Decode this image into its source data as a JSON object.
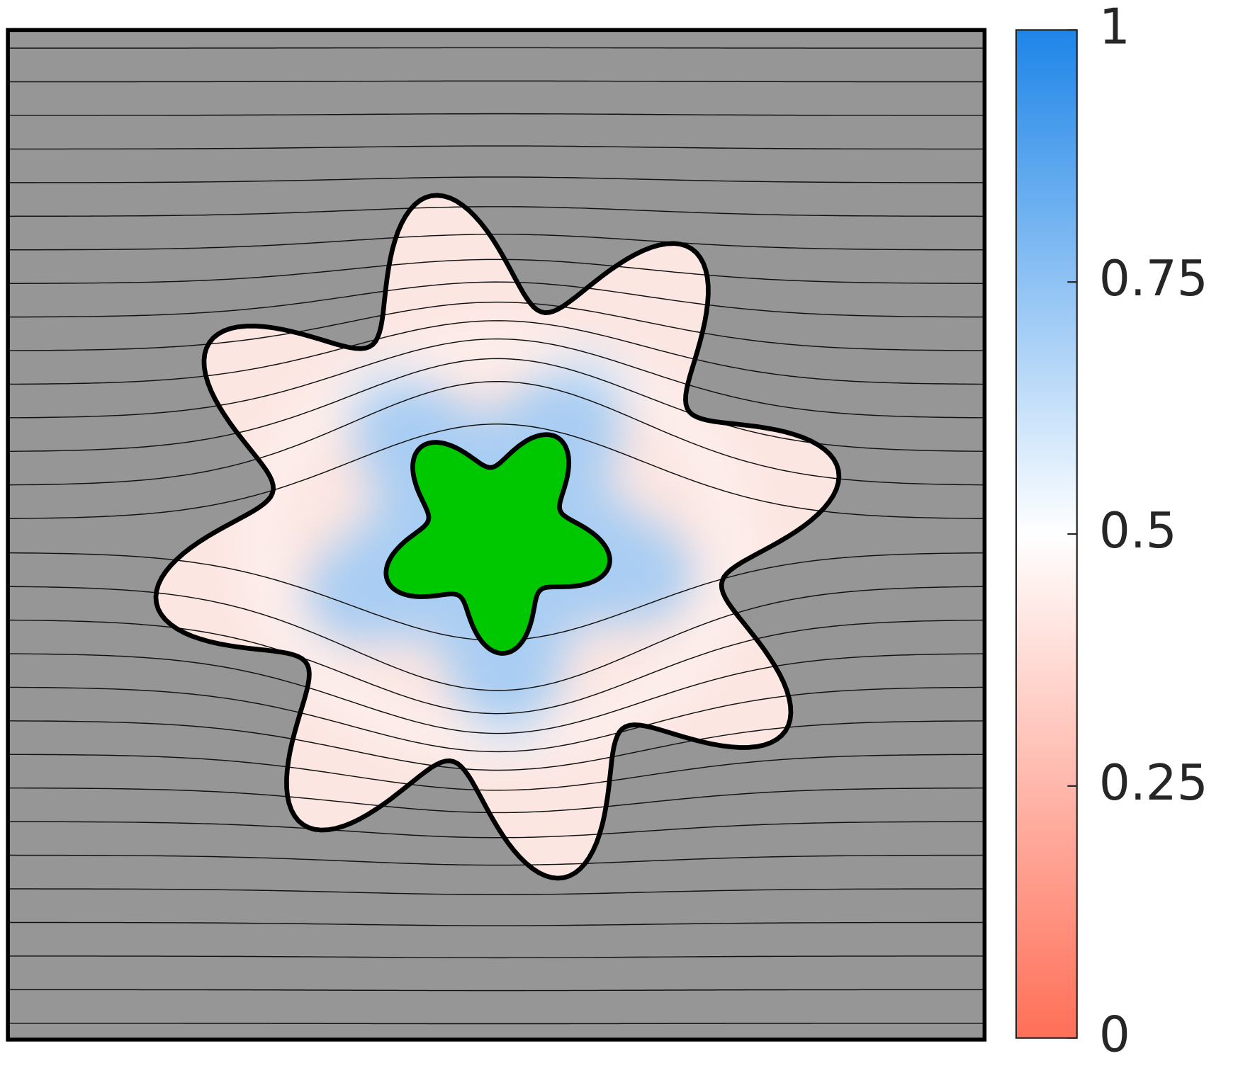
{
  "chart_data": {
    "type": "field",
    "clim": [
      0,
      1
    ],
    "cticks": [
      0,
      0.25,
      0.5,
      0.75,
      1
    ],
    "colormap": [
      "#ff6f57",
      "#ffffff",
      "#1e85e8"
    ],
    "background": "#969696",
    "inner_color": "#00c800"
  }
}
